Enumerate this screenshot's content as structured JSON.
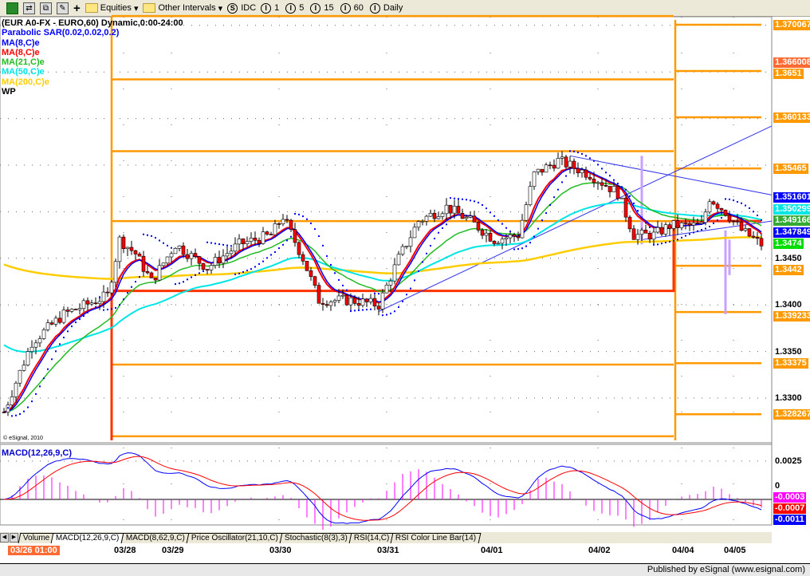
{
  "toolbar": {
    "equities_label": "Equities",
    "other_intervals_label": "Other Intervals",
    "symbol_source": {
      "icon": "S",
      "label": "IDC"
    },
    "intervals": [
      {
        "icon": "I",
        "label": "1"
      },
      {
        "icon": "I",
        "label": "5"
      },
      {
        "icon": "I",
        "label": "15"
      },
      {
        "icon": "I",
        "label": "60"
      },
      {
        "icon": "I",
        "label": "Daily"
      }
    ]
  },
  "legend": [
    {
      "text": "(EUR A0-FX - EURO,60) Dynamic,0:00-24:00",
      "color": "#000000"
    },
    {
      "text": "Parabolic SAR(0.02,0.02,0.2)",
      "color": "#0000ff"
    },
    {
      "text": "MA(8,C)e",
      "color": "#0000ff"
    },
    {
      "text": "MA(8,C)e",
      "color": "#ff0000"
    },
    {
      "text": "MA(21,C)e",
      "color": "#22bb22"
    },
    {
      "text": "MA(50,C)e",
      "color": "#00e5e5"
    },
    {
      "text": "MA(200,C)e",
      "color": "#ffcc00"
    },
    {
      "text": "WP",
      "color": "#000000"
    }
  ],
  "watermark": "© eSignal, 2010",
  "macd_label": "MACD(12,26,9,C)",
  "price_axis": [
    {
      "text": "1.370067",
      "price": 1.370067,
      "bg": "#ff9900",
      "fg": "#ffffff"
    },
    {
      "text": "1.366008",
      "price": 1.366008,
      "bg": "#ff6a33",
      "fg": "#ffffff"
    },
    {
      "text": "1.3651",
      "price": 1.3651,
      "bg": "#ff9900",
      "fg": "#ffffff"
    },
    {
      "text": "1.360133",
      "price": 1.360133,
      "bg": "#ff9900",
      "fg": "#ffffff"
    },
    {
      "text": "1.35465",
      "price": 1.35465,
      "bg": "#ff9900",
      "fg": "#ffffff"
    },
    {
      "text": "1.351601",
      "price": 1.351601,
      "bg": "#0000ff",
      "fg": "#ffffff"
    },
    {
      "text": "1.350299",
      "price": 1.350299,
      "bg": "#00e5e5",
      "fg": "#ffffff"
    },
    {
      "text": "1.349166",
      "price": 1.349166,
      "bg": "#33aa33",
      "fg": "#ffffff"
    },
    {
      "text": "1.347849",
      "price": 1.347849,
      "bg": "#0000ff",
      "fg": "#ffffff"
    },
    {
      "text": "1.3474",
      "price": 1.3474,
      "bg": "#00dd00",
      "fg": "#ffffff"
    },
    {
      "text": "1.3450",
      "price": 1.345,
      "bg": "",
      "fg": "#000000"
    },
    {
      "text": "1.3442",
      "price": 1.3442,
      "bg": "#ff9900",
      "fg": "#ffffff"
    },
    {
      "text": "1.3400",
      "price": 1.34,
      "bg": "",
      "fg": "#000000"
    },
    {
      "text": "1.339233",
      "price": 1.339233,
      "bg": "#ff9900",
      "fg": "#ffffff"
    },
    {
      "text": "1.3350",
      "price": 1.335,
      "bg": "",
      "fg": "#000000"
    },
    {
      "text": "1.33375",
      "price": 1.33375,
      "bg": "#ff9900",
      "fg": "#ffffff"
    },
    {
      "text": "1.3300",
      "price": 1.33,
      "bg": "",
      "fg": "#000000"
    },
    {
      "text": "1.328267",
      "price": 1.328267,
      "bg": "#ff9900",
      "fg": "#ffffff"
    }
  ],
  "macd_axis": [
    {
      "text": "0.0025",
      "value": 0.0025,
      "bg": "",
      "fg": "#000000"
    },
    {
      "text": "0",
      "value": 0,
      "bg": "",
      "fg": "#000000"
    },
    {
      "text": "-0.0003",
      "value": -0.0003,
      "bg": "#ff00ff",
      "fg": "#ffffff"
    },
    {
      "text": "-0.0007",
      "value": -0.0007,
      "bg": "#ff0000",
      "fg": "#ffffff"
    },
    {
      "text": "-0.0011",
      "value": -0.0011,
      "bg": "#0000ff",
      "fg": "#ffffff"
    }
  ],
  "tabs": [
    "Volume",
    "MACD(12,26,9,C)",
    "MACD(8,62,9,C)",
    "Price Oscillator(21,10,C)",
    "Stochastic(8(3),3)",
    "RSI(14,C)",
    "RSI Color Line Bar(14)"
  ],
  "active_tab": 1,
  "date_axis": {
    "cursor_label": "03/26 01:00",
    "dates": [
      {
        "text": "03/28",
        "bar": 30
      },
      {
        "text": "03/29",
        "bar": 42
      },
      {
        "text": "03/30",
        "bar": 69
      },
      {
        "text": "03/31",
        "bar": 96
      },
      {
        "text": "04/01",
        "bar": 122
      },
      {
        "text": "04/02",
        "bar": 149
      },
      {
        "text": "04/04",
        "bar": 170
      },
      {
        "text": "04/05",
        "bar": 183
      }
    ]
  },
  "status_text": "Published by eSignal (www.esignal.com)",
  "chart_data": {
    "type": "candlestick",
    "interval": "60",
    "price_path": [
      [
        0,
        1.3285
      ],
      [
        7,
        1.336
      ],
      [
        15,
        1.339
      ],
      [
        26,
        1.341
      ],
      [
        29,
        1.347
      ],
      [
        33,
        1.3455
      ],
      [
        37,
        1.3425
      ],
      [
        43,
        1.3465
      ],
      [
        51,
        1.344
      ],
      [
        59,
        1.3465
      ],
      [
        67,
        1.3475
      ],
      [
        70,
        1.3495
      ],
      [
        75,
        1.345
      ],
      [
        79,
        1.3405
      ],
      [
        87,
        1.3405
      ],
      [
        94,
        1.34
      ],
      [
        99,
        1.345
      ],
      [
        104,
        1.349
      ],
      [
        111,
        1.3505
      ],
      [
        117,
        1.349
      ],
      [
        123,
        1.347
      ],
      [
        129,
        1.3475
      ],
      [
        133,
        1.354
      ],
      [
        139,
        1.3555
      ],
      [
        147,
        1.354
      ],
      [
        154,
        1.352
      ],
      [
        158,
        1.3475
      ],
      [
        163,
        1.3475
      ],
      [
        167,
        1.3485
      ],
      [
        175,
        1.3485
      ],
      [
        177,
        1.3515
      ],
      [
        181,
        1.35
      ],
      [
        185,
        1.348
      ],
      [
        190,
        1.3465
      ]
    ],
    "pivot_levels_week1": [
      1.371,
      1.3642,
      1.3565,
      1.349,
      1.3415,
      1.3336,
      1.3259
    ],
    "pivot_levels_week2": [
      1.370067,
      1.3651,
      1.360133,
      1.35465,
      1.349,
      1.3442,
      1.339233,
      1.33375,
      1.328267
    ],
    "weekly_pivot_red": [
      1.3415,
      1.349
    ],
    "price_grid": [
      1.345,
      1.34,
      1.335,
      1.33,
      1.35,
      1.355,
      1.36,
      1.365,
      1.37
    ],
    "colors": {
      "up": "#ffffff",
      "down": "#ff0000",
      "pivot": "#ff9900",
      "pivot_main": "#ff3300",
      "sar": "#0000ff",
      "trendline": "#3333ee",
      "macd": "#0000ff",
      "signal": "#ff0000",
      "hist": "#ff00ff"
    }
  }
}
